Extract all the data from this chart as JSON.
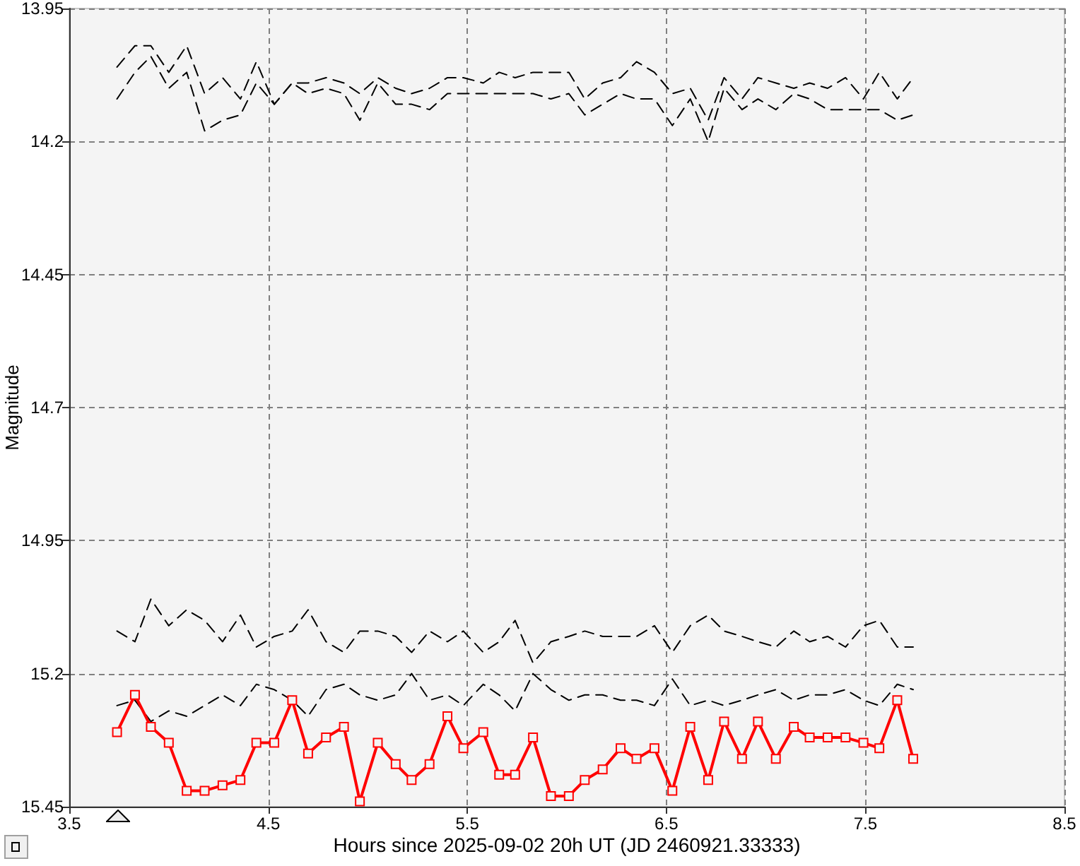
{
  "chart_data": {
    "type": "line",
    "xlabel": "Hours since 2025-09-02 20h UT (JD 2460921.33333)",
    "ylabel": "Magnitude",
    "x": [
      3.74,
      3.83,
      3.91,
      4.0,
      4.09,
      4.18,
      4.27,
      4.36,
      4.44,
      4.53,
      4.62,
      4.7,
      4.79,
      4.88,
      4.96,
      5.05,
      5.14,
      5.22,
      5.31,
      5.4,
      5.48,
      5.58,
      5.66,
      5.74,
      5.83,
      5.92,
      6.01,
      6.09,
      6.18,
      6.27,
      6.35,
      6.44,
      6.53,
      6.62,
      6.71,
      6.79,
      6.88,
      6.96,
      7.05,
      7.14,
      7.22,
      7.31,
      7.4,
      7.49,
      7.57,
      7.66,
      7.74
    ],
    "series": [
      {
        "color": "#000000",
        "line_style": "dashed",
        "marker": "none",
        "values": [
          14.06,
          14.02,
          14.02,
          14.07,
          14.02,
          14.11,
          14.08,
          14.12,
          14.05,
          14.13,
          14.09,
          14.09,
          14.08,
          14.09,
          14.11,
          14.08,
          14.1,
          14.11,
          14.1,
          14.08,
          14.08,
          14.09,
          14.07,
          14.08,
          14.07,
          14.07,
          14.07,
          14.12,
          14.09,
          14.08,
          14.05,
          14.07,
          14.11,
          14.1,
          14.16,
          14.08,
          14.12,
          14.08,
          14.09,
          14.1,
          14.09,
          14.1,
          14.08,
          14.12,
          14.07,
          14.12,
          14.08
        ]
      },
      {
        "color": "#000000",
        "line_style": "dashed",
        "marker": "none",
        "values": [
          14.12,
          14.07,
          14.04,
          14.1,
          14.07,
          14.18,
          14.16,
          14.15,
          14.09,
          14.13,
          14.09,
          14.11,
          14.1,
          14.11,
          14.16,
          14.09,
          14.13,
          14.13,
          14.14,
          14.11,
          14.11,
          14.11,
          14.11,
          14.11,
          14.11,
          14.12,
          14.11,
          14.15,
          14.13,
          14.11,
          14.12,
          14.12,
          14.17,
          14.12,
          14.2,
          14.1,
          14.14,
          14.12,
          14.14,
          14.11,
          14.12,
          14.14,
          14.14,
          14.14,
          14.14,
          14.16,
          14.15
        ]
      },
      {
        "color": "#000000",
        "line_style": "dashed",
        "marker": "none",
        "values": [
          15.12,
          15.14,
          15.06,
          15.11,
          15.08,
          15.1,
          15.14,
          15.09,
          15.15,
          15.13,
          15.12,
          15.08,
          15.14,
          15.16,
          15.12,
          15.12,
          15.13,
          15.16,
          15.12,
          15.14,
          15.12,
          15.16,
          15.14,
          15.1,
          15.18,
          15.14,
          15.13,
          15.12,
          15.13,
          15.13,
          15.13,
          15.11,
          15.16,
          15.11,
          15.09,
          15.12,
          15.13,
          15.14,
          15.15,
          15.12,
          15.14,
          15.13,
          15.15,
          15.11,
          15.1,
          15.15,
          15.15
        ]
      },
      {
        "color": "#000000",
        "line_style": "dashed",
        "marker": "none",
        "values": [
          15.26,
          15.25,
          15.29,
          15.27,
          15.28,
          15.26,
          15.24,
          15.26,
          15.22,
          15.23,
          15.25,
          15.28,
          15.23,
          15.22,
          15.24,
          15.25,
          15.24,
          15.2,
          15.25,
          15.24,
          15.26,
          15.22,
          15.24,
          15.27,
          15.2,
          15.23,
          15.25,
          15.24,
          15.24,
          15.25,
          15.25,
          15.26,
          15.21,
          15.26,
          15.25,
          15.26,
          15.25,
          15.24,
          15.23,
          15.25,
          15.24,
          15.24,
          15.23,
          15.25,
          15.26,
          15.22,
          15.23
        ]
      },
      {
        "color": "#ff0000",
        "line_style": "solid",
        "marker": "square",
        "values": [
          15.31,
          15.24,
          15.3,
          15.33,
          15.42,
          15.42,
          15.41,
          15.4,
          15.33,
          15.33,
          15.25,
          15.35,
          15.32,
          15.3,
          15.44,
          15.33,
          15.37,
          15.4,
          15.37,
          15.28,
          15.34,
          15.31,
          15.39,
          15.39,
          15.32,
          15.43,
          15.43,
          15.4,
          15.38,
          15.34,
          15.36,
          15.34,
          15.42,
          15.3,
          15.4,
          15.29,
          15.36,
          15.29,
          15.36,
          15.3,
          15.32,
          15.32,
          15.32,
          15.33,
          15.34,
          15.25,
          15.36
        ]
      }
    ],
    "xlim": [
      3.5,
      8.5
    ],
    "xticks": [
      3.5,
      4.5,
      5.5,
      6.5,
      7.5,
      8.5
    ],
    "ylim": [
      15.45,
      13.95
    ],
    "yticks": [
      13.95,
      14.2,
      14.45,
      14.7,
      14.95,
      15.2,
      15.45
    ],
    "grid": true
  }
}
